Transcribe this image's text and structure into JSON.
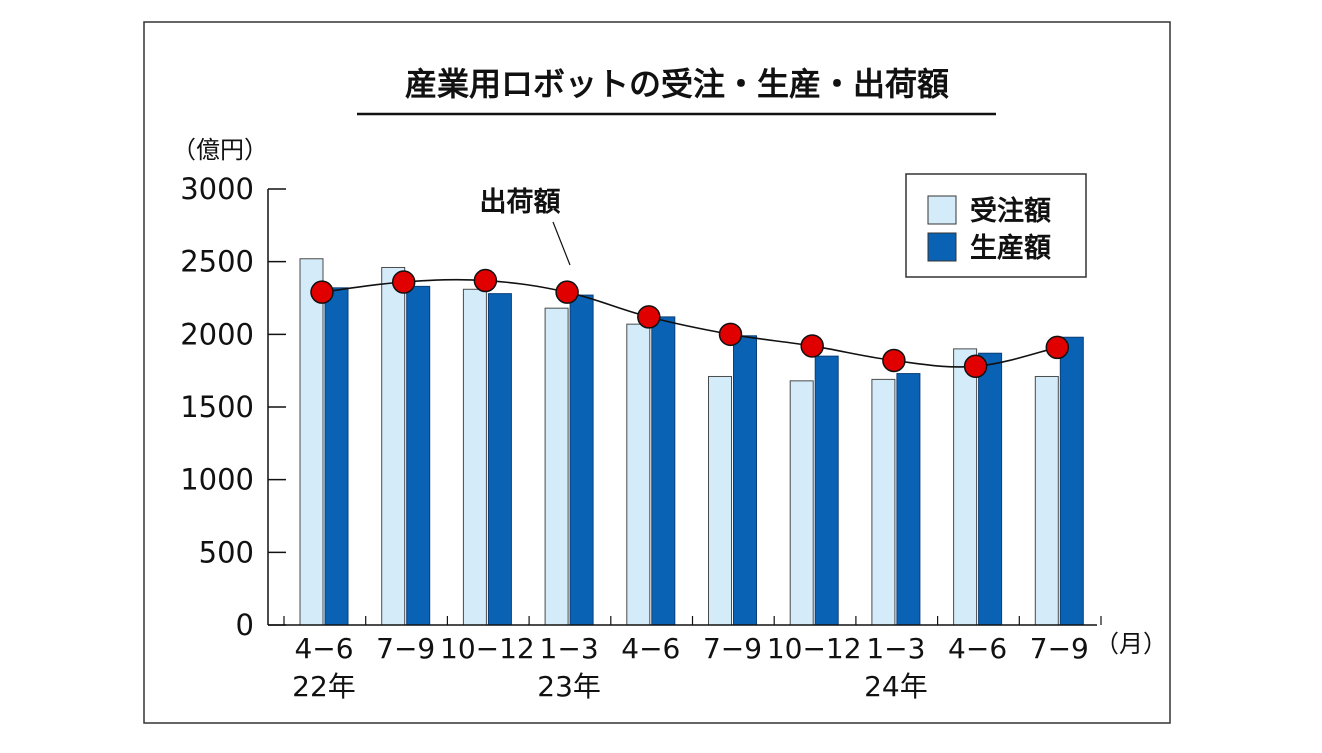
{
  "chart_data": {
    "type": "bar",
    "title": "産業用ロボットの受注・生産・出荷額",
    "ylabel": "（億円）",
    "xlabel": "（月）",
    "ylim": [
      0,
      3000
    ],
    "yticks": [
      "0",
      "500",
      "1000",
      "1500",
      "2000",
      "2500",
      "3000"
    ],
    "yticks_values": [
      0,
      500,
      1000,
      1500,
      2000,
      2500,
      3000
    ],
    "categories": [
      "4−6",
      "7−9",
      "10−12",
      "1−3",
      "4−6",
      "7−9",
      "10−12",
      "1−3",
      "4−6",
      "7−9"
    ],
    "year_labels": [
      {
        "label": "22年",
        "index": 0
      },
      {
        "label": "23年",
        "index": 3
      },
      {
        "label": "24年",
        "index": 7
      }
    ],
    "series": [
      {
        "name": "受注額",
        "type": "bar",
        "color": "#d4ecf9",
        "values": [
          2520,
          2460,
          2310,
          2180,
          2070,
          1710,
          1680,
          1690,
          1900,
          1710
        ]
      },
      {
        "name": "生産額",
        "type": "bar",
        "color": "#0a62b4",
        "values": [
          2320,
          2330,
          2280,
          2270,
          2120,
          1990,
          1850,
          1730,
          1870,
          1980
        ]
      },
      {
        "name": "出荷額",
        "type": "line",
        "color": "#e00000",
        "values": [
          2290,
          2360,
          2370,
          2290,
          2120,
          2000,
          1920,
          1820,
          1780,
          1910
        ]
      }
    ],
    "annotations": [
      {
        "text": "出荷額",
        "target_series": "出荷額"
      }
    ],
    "legend": {
      "position": "top-right",
      "items": [
        "受注額",
        "生産額"
      ]
    },
    "grid": false
  }
}
